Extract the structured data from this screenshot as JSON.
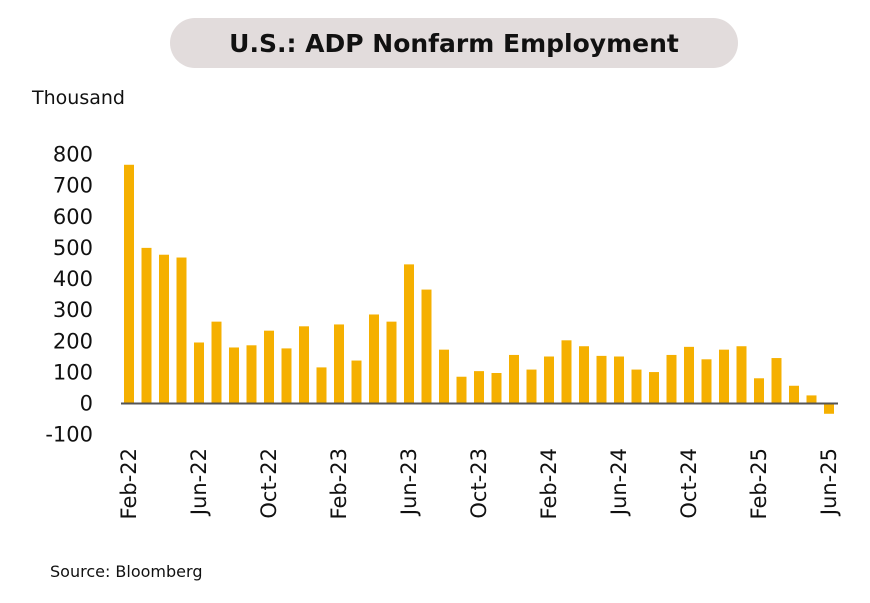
{
  "title": "U.S.: ADP Nonfarm Employment",
  "source": "Source: Bloomberg",
  "colors": {
    "bar": "#f5b000",
    "axis": "#555555",
    "title_bg": "#e2dcdc"
  },
  "chart_data": {
    "type": "bar",
    "title": "U.S.: ADP Nonfarm Employment",
    "ylabel": "Thousand",
    "ylim": [
      -100,
      800
    ],
    "yticks": [
      -100,
      0,
      100,
      200,
      300,
      400,
      500,
      600,
      700,
      800
    ],
    "xtick_labels": [
      "Feb-22",
      "Jun-22",
      "Oct-22",
      "Feb-23",
      "Jun-23",
      "Oct-23",
      "Feb-24",
      "Jun-24",
      "Oct-24",
      "Feb-25",
      "Jun-25"
    ],
    "categories": [
      "Feb-22",
      "Mar-22",
      "Apr-22",
      "May-22",
      "Jun-22",
      "Jul-22",
      "Aug-22",
      "Sep-22",
      "Oct-22",
      "Nov-22",
      "Dec-22",
      "Jan-23",
      "Feb-23",
      "Mar-23",
      "Apr-23",
      "May-23",
      "Jun-23",
      "Jul-23",
      "Aug-23",
      "Sep-23",
      "Oct-23",
      "Nov-23",
      "Dec-23",
      "Jan-24",
      "Feb-24",
      "Mar-24",
      "Apr-24",
      "May-24",
      "Jun-24",
      "Jul-24",
      "Aug-24",
      "Sep-24",
      "Oct-24",
      "Nov-24",
      "Dec-24",
      "Jan-25",
      "Feb-25",
      "Mar-25",
      "Apr-25",
      "May-25",
      "Jun-25"
    ],
    "values": [
      767,
      500,
      478,
      469,
      196,
      263,
      180,
      187,
      234,
      177,
      248,
      116,
      254,
      138,
      286,
      263,
      447,
      366,
      173,
      86,
      104,
      98,
      156,
      109,
      151,
      203,
      184,
      153,
      151,
      109,
      101,
      156,
      182,
      142,
      173,
      184,
      81,
      146,
      57,
      26,
      -33
    ],
    "grid": false,
    "legend": "none"
  }
}
